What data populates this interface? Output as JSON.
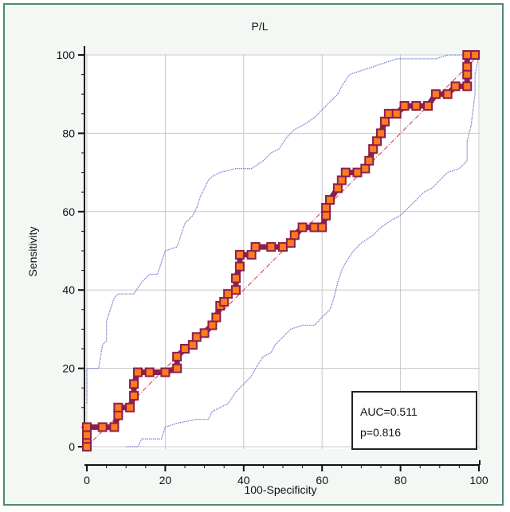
{
  "chart_data": {
    "type": "line",
    "title": "P/L",
    "xlabel": "100-Specificity",
    "ylabel": "Sensitivity",
    "xlim": [
      0,
      100
    ],
    "ylim": [
      0,
      100
    ],
    "x_ticks": [
      0,
      20,
      40,
      60,
      80,
      100
    ],
    "y_ticks": [
      0,
      20,
      40,
      60,
      80,
      100
    ],
    "grid": true,
    "colors": {
      "roc_line": "#8a1f4f",
      "marker_fill": "#ff7b1c",
      "ci_lines": "#7f7fd5",
      "diagonal": "#e05050",
      "grid": "#c8c8c8",
      "background": "#ffffff",
      "frame": "#4f8a6e"
    },
    "annotations": [
      "AUC=0.511",
      "p=0.816"
    ],
    "series": [
      {
        "role": "roc",
        "points": [
          [
            0,
            0
          ],
          [
            0,
            2
          ],
          [
            0,
            3
          ],
          [
            0,
            5
          ],
          [
            4,
            5
          ],
          [
            7,
            5
          ],
          [
            8,
            8
          ],
          [
            8,
            10
          ],
          [
            11,
            10
          ],
          [
            12,
            13
          ],
          [
            12,
            16
          ],
          [
            13,
            19
          ],
          [
            16,
            19
          ],
          [
            20,
            19
          ],
          [
            23,
            20
          ],
          [
            23,
            23
          ],
          [
            25,
            25
          ],
          [
            27,
            26
          ],
          [
            28,
            28
          ],
          [
            30,
            29
          ],
          [
            32,
            31
          ],
          [
            33,
            33
          ],
          [
            34,
            36
          ],
          [
            35,
            37
          ],
          [
            36,
            39
          ],
          [
            38,
            40
          ],
          [
            38,
            43
          ],
          [
            39,
            46
          ],
          [
            39,
            49
          ],
          [
            42,
            49
          ],
          [
            43,
            51
          ],
          [
            47,
            51
          ],
          [
            50,
            51
          ],
          [
            52,
            52
          ],
          [
            53,
            54
          ],
          [
            55,
            56
          ],
          [
            58,
            56
          ],
          [
            60,
            56
          ],
          [
            61,
            59
          ],
          [
            61,
            61
          ],
          [
            62,
            63
          ],
          [
            64,
            66
          ],
          [
            65,
            68
          ],
          [
            66,
            70
          ],
          [
            69,
            70
          ],
          [
            71,
            71
          ],
          [
            72,
            73
          ],
          [
            73,
            76
          ],
          [
            74,
            78
          ],
          [
            75,
            80
          ],
          [
            76,
            83
          ],
          [
            77,
            85
          ],
          [
            79,
            85
          ],
          [
            81,
            87
          ],
          [
            84,
            87
          ],
          [
            87,
            87
          ],
          [
            89,
            90
          ],
          [
            92,
            90
          ],
          [
            94,
            92
          ],
          [
            97,
            92
          ],
          [
            97,
            95
          ],
          [
            97,
            97
          ],
          [
            97,
            100
          ],
          [
            99,
            100
          ]
        ]
      },
      {
        "role": "ci_upper",
        "points": [
          [
            0,
            11
          ],
          [
            0,
            20
          ],
          [
            3,
            20
          ],
          [
            4,
            26
          ],
          [
            5,
            27
          ],
          [
            5,
            32
          ],
          [
            6,
            35
          ],
          [
            7,
            38
          ],
          [
            8,
            39
          ],
          [
            12,
            39
          ],
          [
            14,
            42
          ],
          [
            16,
            44
          ],
          [
            18,
            44
          ],
          [
            19,
            47
          ],
          [
            20,
            50
          ],
          [
            23,
            51
          ],
          [
            24,
            54
          ],
          [
            25,
            57
          ],
          [
            27,
            59
          ],
          [
            28,
            61
          ],
          [
            29,
            64
          ],
          [
            30,
            66
          ],
          [
            31,
            68
          ],
          [
            32,
            69
          ],
          [
            34,
            70
          ],
          [
            38,
            71
          ],
          [
            42,
            71
          ],
          [
            45,
            73
          ],
          [
            47,
            75
          ],
          [
            49,
            76
          ],
          [
            51,
            79
          ],
          [
            53,
            81
          ],
          [
            55,
            82
          ],
          [
            58,
            84
          ],
          [
            60,
            86
          ],
          [
            62,
            88
          ],
          [
            64,
            90
          ],
          [
            65,
            92
          ],
          [
            67,
            95
          ],
          [
            70,
            96
          ],
          [
            73,
            97
          ],
          [
            76,
            98
          ],
          [
            79,
            99
          ],
          [
            82,
            99
          ],
          [
            85,
            99
          ],
          [
            89,
            99
          ],
          [
            92,
            100
          ],
          [
            96,
            100
          ],
          [
            98,
            100
          ],
          [
            100,
            100
          ]
        ]
      },
      {
        "role": "ci_lower",
        "points": [
          [
            10,
            0
          ],
          [
            13,
            0
          ],
          [
            14,
            2
          ],
          [
            19,
            2
          ],
          [
            20,
            5
          ],
          [
            23,
            6
          ],
          [
            28,
            7
          ],
          [
            31,
            7
          ],
          [
            32,
            9
          ],
          [
            34,
            10
          ],
          [
            36,
            11
          ],
          [
            38,
            14
          ],
          [
            40,
            16
          ],
          [
            42,
            18
          ],
          [
            43,
            20
          ],
          [
            45,
            23
          ],
          [
            47,
            24
          ],
          [
            48,
            26
          ],
          [
            50,
            28
          ],
          [
            52,
            30
          ],
          [
            55,
            31
          ],
          [
            58,
            31
          ],
          [
            60,
            33
          ],
          [
            62,
            35
          ],
          [
            63,
            38
          ],
          [
            64,
            42
          ],
          [
            65,
            45
          ],
          [
            66,
            47
          ],
          [
            68,
            50
          ],
          [
            70,
            52
          ],
          [
            73,
            54
          ],
          [
            75,
            56
          ],
          [
            78,
            58
          ],
          [
            80,
            59
          ],
          [
            82,
            61
          ],
          [
            84,
            63
          ],
          [
            86,
            65
          ],
          [
            88,
            66
          ],
          [
            90,
            68
          ],
          [
            92,
            70
          ],
          [
            95,
            71
          ],
          [
            97,
            73
          ],
          [
            97,
            78
          ],
          [
            98,
            82
          ],
          [
            99,
            90
          ],
          [
            99,
            95
          ],
          [
            100,
            100
          ]
        ]
      },
      {
        "role": "diagonal",
        "points": [
          [
            0,
            0
          ],
          [
            100,
            100
          ]
        ]
      }
    ]
  }
}
